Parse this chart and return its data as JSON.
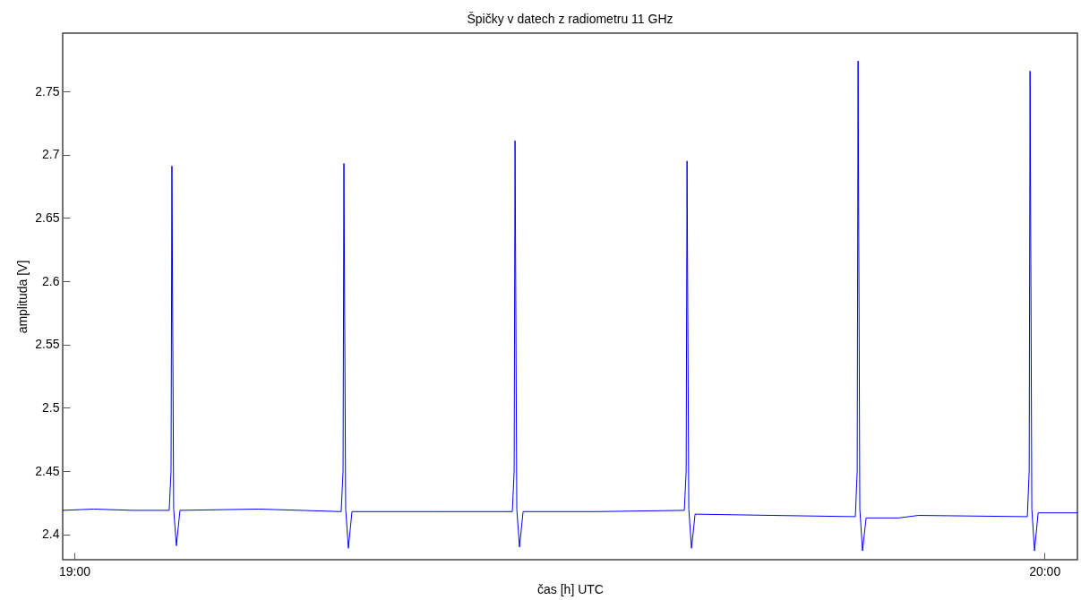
{
  "chart_data": {
    "type": "line",
    "title": "Špičky v datech z radiometru 11 GHz",
    "xlabel": "čas [h] UTC",
    "ylabel": "amplituda [V]",
    "x": [
      18.988,
      19.02,
      19.06,
      19.0978,
      19.0997,
      19.1006,
      19.1024,
      19.1052,
      19.1089,
      19.19,
      19.2751,
      19.277,
      19.2779,
      19.2797,
      19.2825,
      19.2862,
      19.37,
      19.4515,
      19.4534,
      19.4543,
      19.4561,
      19.4589,
      19.4626,
      19.54,
      19.6288,
      19.6307,
      19.6316,
      19.6334,
      19.6362,
      19.6399,
      19.72,
      19.8051,
      19.807,
      19.8079,
      19.8097,
      19.8125,
      19.8162,
      19.85,
      19.87,
      19.9824,
      19.9843,
      19.9852,
      19.987,
      19.9898,
      19.9935,
      20.034
    ],
    "series": [
      {
        "color": "#0000ff",
        "values": [
          2.419,
          2.42,
          2.419,
          2.419,
          2.45,
          2.691,
          2.42,
          2.391,
          2.419,
          2.42,
          2.418,
          2.45,
          2.693,
          2.42,
          2.389,
          2.418,
          2.418,
          2.418,
          2.45,
          2.711,
          2.42,
          2.39,
          2.418,
          2.418,
          2.419,
          2.45,
          2.695,
          2.42,
          2.389,
          2.416,
          2.415,
          2.414,
          2.45,
          2.774,
          2.42,
          2.387,
          2.413,
          2.413,
          2.415,
          2.414,
          2.45,
          2.766,
          2.42,
          2.387,
          2.417,
          2.417
        ]
      }
    ],
    "xlim": [
      18.988,
      20.034
    ],
    "xticks": [
      {
        "value": 19,
        "label": "19:00"
      },
      {
        "value": 20,
        "label": "20:00"
      }
    ],
    "ylim": [
      2.38,
      2.796
    ],
    "yticks": [
      2.4,
      2.45,
      2.5,
      2.55,
      2.6,
      2.65,
      2.7,
      2.75
    ],
    "grid": false,
    "marker": "none",
    "line_style": "solid"
  }
}
